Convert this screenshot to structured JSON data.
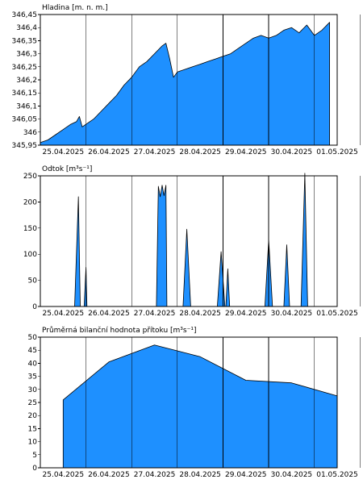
{
  "chart_data": [
    {
      "type": "area",
      "title": "Hladina [m. n. m.]",
      "xlabel": "",
      "ylabel": "",
      "grid": "vertical day lines",
      "color": "#1e90ff",
      "xlim": [
        "25.04.2025 00:00",
        "01.05.2025 12:00"
      ],
      "ylim": [
        345.95,
        346.45
      ],
      "y_ticks": [
        "345,95",
        "346",
        "346,05",
        "346,1",
        "346,15",
        "346,2",
        "346,25",
        "346,3",
        "346,35",
        "346,4",
        "346,45"
      ],
      "x_ticks": [
        "25.04.2025",
        "26.04.2025",
        "27.04.2025",
        "28.04.2025",
        "29.04.2025",
        "30.04.2025",
        "01.05.2025"
      ],
      "series": [
        {
          "x": [
            "25.04. 00:00",
            "25.04. 04:00",
            "25.04. 08:00",
            "25.04. 12:00",
            "25.04. 16:00",
            "25.04. 19:00",
            "25.04. 20:30",
            "25.04. 22:00",
            "26.04. 00:00",
            "26.04. 04:00",
            "26.04. 08:00",
            "26.04. 12:00",
            "26.04. 16:00",
            "26.04. 20:00",
            "27.04. 00:00",
            "27.04. 04:00",
            "27.04. 08:00",
            "27.04. 12:00",
            "27.04. 16:00",
            "27.04. 18:00",
            "27.04. 20:00",
            "27.04. 22:00",
            "28.04. 00:00",
            "28.04. 04:00",
            "28.04. 08:00",
            "28.04. 12:00",
            "28.04. 16:00",
            "28.04. 20:00",
            "29.04. 00:00",
            "29.04. 04:00",
            "29.04. 08:00",
            "29.04. 12:00",
            "29.04. 16:00",
            "29.04. 20:00",
            "30.04. 00:00",
            "30.04. 04:00",
            "30.04. 08:00",
            "30.04. 12:00",
            "30.04. 16:00",
            "30.04. 20:00",
            "01.05. 00:00",
            "01.05. 04:00",
            "01.05. 08:00"
          ],
          "values": [
            345.96,
            345.97,
            345.99,
            346.01,
            346.03,
            346.04,
            346.06,
            346.02,
            346.03,
            346.05,
            346.08,
            346.11,
            346.14,
            346.18,
            346.21,
            346.25,
            346.27,
            346.3,
            346.33,
            346.34,
            346.28,
            346.21,
            346.23,
            346.24,
            346.25,
            346.26,
            346.27,
            346.28,
            346.29,
            346.3,
            346.32,
            346.34,
            346.36,
            346.37,
            346.36,
            346.37,
            346.39,
            346.4,
            346.38,
            346.41,
            346.37,
            346.39,
            346.42
          ]
        }
      ]
    },
    {
      "type": "area",
      "title": "Odtok [m³s⁻¹]",
      "xlabel": "",
      "ylabel": "",
      "grid": "vertical day lines",
      "color": "#1e90ff",
      "xlim": [
        "25.04.2025 00:00",
        "01.05.2025 12:00"
      ],
      "ylim": [
        0,
        250
      ],
      "y_ticks": [
        "0",
        "50",
        "100",
        "150",
        "200",
        "250"
      ],
      "x_ticks": [
        "25.04.2025",
        "26.04.2025",
        "27.04.2025",
        "28.04.2025",
        "29.04.2025",
        "30.04.2025",
        "01.05.2025"
      ],
      "series": [
        {
          "x": [
            "25.04. 00:00",
            "25.04. 18:00",
            "25.04. 20:00",
            "25.04. 21:00",
            "25.04. 23:00",
            "26.04. 00:00",
            "26.04. 00:30",
            "26.04. 01:00",
            "27.04. 13:00",
            "27.04. 14:00",
            "27.04. 15:00",
            "27.04. 16:00",
            "27.04. 17:00",
            "27.04. 18:00",
            "27.04. 18:30",
            "28.04. 03:00",
            "28.04. 05:00",
            "28.04. 07:00",
            "28.04. 21:00",
            "28.04. 23:00",
            "29.04. 01:00",
            "29.04. 01:30",
            "29.04. 02:30",
            "29.04. 03:30",
            "29.04. 22:00",
            "30.04. 00:00",
            "30.04. 02:00",
            "30.04. 08:00",
            "30.04. 09:30",
            "30.04. 11:00",
            "30.04. 17:00",
            "30.04. 19:00",
            "30.04. 20:30",
            "01.05. 12:00"
          ],
          "values": [
            0,
            0,
            210,
            0,
            0,
            75,
            0,
            0,
            0,
            230,
            210,
            232,
            212,
            232,
            0,
            0,
            148,
            0,
            0,
            105,
            0,
            0,
            72,
            0,
            0,
            128,
            0,
            0,
            118,
            0,
            0,
            255,
            0,
            0
          ]
        }
      ]
    },
    {
      "type": "area",
      "title": "Průměrná bilanční hodnota přítoku   [m³s⁻¹]",
      "xlabel": "",
      "ylabel": "",
      "grid": "vertical day lines",
      "color": "#1e90ff",
      "xlim": [
        "25.04.2025 00:00",
        "01.05.2025 12:00"
      ],
      "ylim": [
        0,
        50
      ],
      "y_ticks": [
        "0",
        "5",
        "10",
        "15",
        "20",
        "25",
        "30",
        "35",
        "40",
        "45",
        "50"
      ],
      "x_ticks": [
        "25.04.2025",
        "26.04.2025",
        "27.04.2025",
        "28.04.2025",
        "29.04.2025",
        "30.04.2025",
        "01.05.2025"
      ],
      "series": [
        {
          "x": [
            "25.04. 12:00",
            "26.04. 12:00",
            "27.04. 12:00",
            "28.04. 12:00",
            "29.04. 12:00",
            "30.04. 12:00",
            "01.05. 12:00"
          ],
          "values": [
            26,
            40.5,
            47,
            42.5,
            33.5,
            32.5,
            27.5
          ]
        }
      ]
    }
  ]
}
